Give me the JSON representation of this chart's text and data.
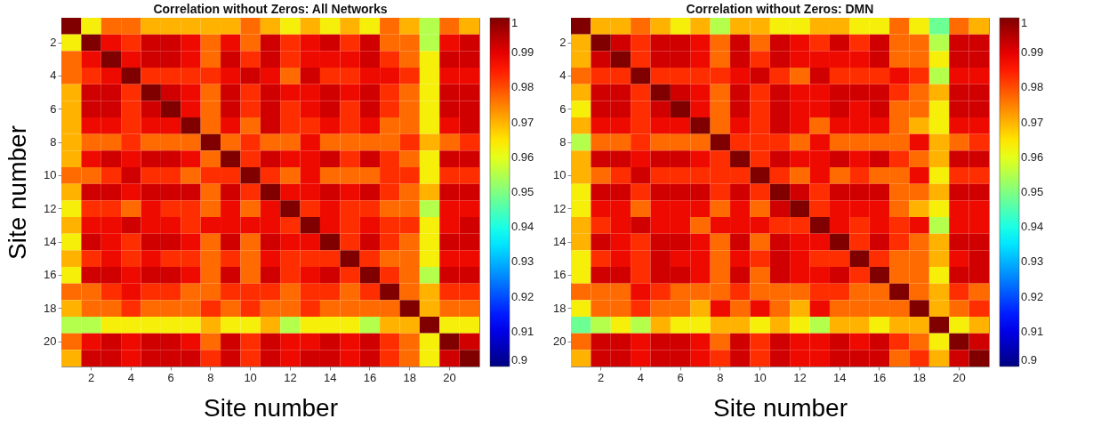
{
  "chart_data": [
    {
      "type": "heatmap",
      "title": "Correlation without Zeros: All Networks",
      "xlabel": "Site number",
      "ylabel": "Site number",
      "categories": [
        null,
        "2",
        null,
        "4",
        null,
        "6",
        null,
        "8",
        null,
        "10",
        null,
        "12",
        null,
        "14",
        null,
        "16",
        null,
        "18",
        null,
        "20",
        null
      ],
      "y_categories": [
        null,
        "2",
        null,
        "4",
        null,
        "6",
        null,
        "8",
        null,
        "10",
        null,
        "12",
        null,
        "14",
        null,
        "16",
        null,
        "18",
        null,
        "20",
        null
      ],
      "clim": [
        0.9,
        1
      ],
      "cticks": [
        0.9,
        0.91,
        0.92,
        0.93,
        0.94,
        0.95,
        0.96,
        0.97,
        0.98,
        0.99,
        1
      ],
      "cells": [
        [
          1,
          0.963,
          0.977,
          0.977,
          0.97,
          0.97,
          0.97,
          0.97,
          0.97,
          0.977,
          0.97,
          0.963,
          0.97,
          0.963,
          0.97,
          0.963,
          0.977,
          0.97,
          0.955,
          0.977,
          0.97
        ],
        [
          0.963,
          1,
          0.988,
          0.983,
          0.992,
          0.992,
          0.988,
          0.977,
          0.988,
          0.977,
          0.992,
          0.983,
          0.988,
          0.992,
          0.983,
          0.992,
          0.977,
          0.977,
          0.955,
          0.988,
          0.992
        ],
        [
          0.977,
          0.988,
          1,
          0.988,
          0.992,
          0.992,
          0.988,
          0.977,
          0.992,
          0.983,
          0.992,
          0.983,
          0.988,
          0.988,
          0.988,
          0.992,
          0.983,
          0.977,
          0.963,
          0.992,
          0.992
        ],
        [
          0.977,
          0.983,
          0.988,
          1,
          0.983,
          0.983,
          0.983,
          0.983,
          0.988,
          0.992,
          0.988,
          0.977,
          0.992,
          0.983,
          0.983,
          0.988,
          0.988,
          0.983,
          0.963,
          0.988,
          0.988
        ],
        [
          0.97,
          0.992,
          0.992,
          0.983,
          1,
          0.992,
          0.988,
          0.977,
          0.992,
          0.983,
          0.992,
          0.988,
          0.988,
          0.992,
          0.988,
          0.992,
          0.983,
          0.977,
          0.963,
          0.992,
          0.992
        ],
        [
          0.97,
          0.992,
          0.992,
          0.983,
          0.992,
          1,
          0.988,
          0.977,
          0.992,
          0.983,
          0.992,
          0.983,
          0.988,
          0.992,
          0.983,
          0.992,
          0.983,
          0.977,
          0.963,
          0.992,
          0.992
        ],
        [
          0.97,
          0.988,
          0.988,
          0.983,
          0.988,
          0.988,
          1,
          0.977,
          0.988,
          0.977,
          0.992,
          0.983,
          0.983,
          0.988,
          0.983,
          0.988,
          0.977,
          0.977,
          0.963,
          0.988,
          0.992
        ],
        [
          0.97,
          0.977,
          0.977,
          0.983,
          0.977,
          0.977,
          0.977,
          1,
          0.977,
          0.983,
          0.977,
          0.977,
          0.988,
          0.977,
          0.977,
          0.977,
          0.977,
          0.983,
          0.97,
          0.977,
          0.983
        ],
        [
          0.97,
          0.988,
          0.992,
          0.988,
          0.992,
          0.992,
          0.988,
          0.977,
          1,
          0.983,
          0.992,
          0.988,
          0.988,
          0.992,
          0.983,
          0.992,
          0.983,
          0.977,
          0.963,
          0.992,
          0.992
        ],
        [
          0.977,
          0.977,
          0.983,
          0.992,
          0.983,
          0.983,
          0.977,
          0.983,
          0.983,
          1,
          0.983,
          0.977,
          0.988,
          0.977,
          0.977,
          0.977,
          0.983,
          0.983,
          0.963,
          0.983,
          0.983
        ],
        [
          0.97,
          0.992,
          0.992,
          0.988,
          0.992,
          0.992,
          0.992,
          0.977,
          0.992,
          0.983,
          1,
          0.988,
          0.988,
          0.992,
          0.988,
          0.992,
          0.983,
          0.977,
          0.97,
          0.992,
          0.992
        ],
        [
          0.963,
          0.983,
          0.983,
          0.977,
          0.988,
          0.983,
          0.983,
          0.977,
          0.988,
          0.977,
          0.988,
          1,
          0.983,
          0.988,
          0.983,
          0.983,
          0.977,
          0.977,
          0.955,
          0.988,
          0.988
        ],
        [
          0.97,
          0.988,
          0.988,
          0.992,
          0.988,
          0.988,
          0.983,
          0.988,
          0.988,
          0.988,
          0.988,
          0.983,
          1,
          0.988,
          0.983,
          0.988,
          0.983,
          0.983,
          0.963,
          0.988,
          0.992
        ],
        [
          0.963,
          0.992,
          0.988,
          0.983,
          0.992,
          0.992,
          0.988,
          0.977,
          0.992,
          0.977,
          0.992,
          0.988,
          0.988,
          1,
          0.983,
          0.992,
          0.983,
          0.977,
          0.963,
          0.992,
          0.992
        ],
        [
          0.97,
          0.983,
          0.988,
          0.983,
          0.988,
          0.983,
          0.983,
          0.977,
          0.983,
          0.977,
          0.988,
          0.983,
          0.983,
          0.983,
          1,
          0.983,
          0.977,
          0.977,
          0.963,
          0.988,
          0.988
        ],
        [
          0.963,
          0.992,
          0.992,
          0.988,
          0.992,
          0.992,
          0.988,
          0.977,
          0.992,
          0.977,
          0.992,
          0.983,
          0.988,
          0.992,
          0.983,
          1,
          0.983,
          0.977,
          0.955,
          0.992,
          0.992
        ],
        [
          0.977,
          0.977,
          0.983,
          0.988,
          0.983,
          0.983,
          0.977,
          0.977,
          0.983,
          0.983,
          0.983,
          0.977,
          0.983,
          0.983,
          0.977,
          0.983,
          1,
          0.977,
          0.97,
          0.983,
          0.983
        ],
        [
          0.97,
          0.977,
          0.977,
          0.983,
          0.977,
          0.977,
          0.977,
          0.983,
          0.977,
          0.983,
          0.977,
          0.977,
          0.983,
          0.977,
          0.977,
          0.977,
          0.977,
          1,
          0.97,
          0.977,
          0.977
        ],
        [
          0.955,
          0.955,
          0.963,
          0.963,
          0.963,
          0.963,
          0.963,
          0.97,
          0.963,
          0.963,
          0.97,
          0.955,
          0.963,
          0.963,
          0.963,
          0.955,
          0.97,
          0.97,
          1,
          0.963,
          0.963
        ],
        [
          0.977,
          0.988,
          0.992,
          0.988,
          0.992,
          0.992,
          0.988,
          0.977,
          0.992,
          0.983,
          0.992,
          0.988,
          0.988,
          0.992,
          0.988,
          0.992,
          0.983,
          0.977,
          0.963,
          1,
          0.992
        ],
        [
          0.97,
          0.992,
          0.992,
          0.988,
          0.992,
          0.992,
          0.992,
          0.983,
          0.992,
          0.983,
          0.992,
          0.988,
          0.992,
          0.992,
          0.988,
          0.992,
          0.983,
          0.977,
          0.963,
          0.992,
          1
        ]
      ]
    },
    {
      "type": "heatmap",
      "title": "Correlation without Zeros: DMN",
      "xlabel": "Site number",
      "categories": [
        null,
        "2",
        null,
        "4",
        null,
        "6",
        null,
        "8",
        null,
        "10",
        null,
        "12",
        null,
        "14",
        null,
        "16",
        null,
        "18",
        null,
        "20",
        null
      ],
      "y_categories": [
        null,
        "2",
        null,
        "4",
        null,
        "6",
        null,
        "8",
        null,
        "10",
        null,
        "12",
        null,
        "14",
        null,
        "16",
        null,
        "18",
        null,
        "20",
        null
      ],
      "clim": [
        0.9,
        1
      ],
      "cticks": [
        0.9,
        0.91,
        0.92,
        0.93,
        0.94,
        0.95,
        0.96,
        0.97,
        0.98,
        0.99,
        1
      ],
      "cells": [
        [
          1,
          0.97,
          0.97,
          0.977,
          0.97,
          0.963,
          0.97,
          0.955,
          0.97,
          0.97,
          0.963,
          0.963,
          0.97,
          0.97,
          0.963,
          0.963,
          0.977,
          0.963,
          0.948,
          0.977,
          0.97
        ],
        [
          0.97,
          1,
          0.992,
          0.983,
          0.992,
          0.992,
          0.988,
          0.977,
          0.992,
          0.977,
          0.992,
          0.988,
          0.983,
          0.992,
          0.983,
          0.992,
          0.977,
          0.977,
          0.955,
          0.992,
          0.992
        ],
        [
          0.97,
          0.992,
          1,
          0.983,
          0.992,
          0.992,
          0.988,
          0.977,
          0.992,
          0.983,
          0.992,
          0.988,
          0.988,
          0.988,
          0.988,
          0.992,
          0.977,
          0.977,
          0.963,
          0.992,
          0.992
        ],
        [
          0.977,
          0.983,
          0.983,
          1,
          0.983,
          0.983,
          0.983,
          0.983,
          0.988,
          0.992,
          0.983,
          0.977,
          0.992,
          0.983,
          0.983,
          0.983,
          0.988,
          0.983,
          0.955,
          0.988,
          0.988
        ],
        [
          0.97,
          0.992,
          0.992,
          0.983,
          1,
          0.992,
          0.988,
          0.977,
          0.992,
          0.983,
          0.992,
          0.988,
          0.988,
          0.992,
          0.992,
          0.992,
          0.983,
          0.977,
          0.97,
          0.992,
          0.992
        ],
        [
          0.963,
          0.992,
          0.992,
          0.983,
          0.992,
          1,
          0.988,
          0.977,
          0.992,
          0.983,
          0.992,
          0.988,
          0.988,
          0.992,
          0.988,
          0.992,
          0.977,
          0.977,
          0.963,
          0.992,
          0.992
        ],
        [
          0.97,
          0.988,
          0.988,
          0.983,
          0.988,
          0.988,
          1,
          0.977,
          0.988,
          0.983,
          0.992,
          0.988,
          0.977,
          0.988,
          0.988,
          0.988,
          0.977,
          0.97,
          0.963,
          0.988,
          0.988
        ],
        [
          0.955,
          0.977,
          0.977,
          0.983,
          0.977,
          0.977,
          0.977,
          1,
          0.983,
          0.983,
          0.983,
          0.977,
          0.988,
          0.977,
          0.977,
          0.977,
          0.977,
          0.988,
          0.97,
          0.977,
          0.983
        ],
        [
          0.97,
          0.992,
          0.992,
          0.988,
          0.992,
          0.992,
          0.988,
          0.983,
          1,
          0.983,
          0.992,
          0.988,
          0.988,
          0.992,
          0.988,
          0.992,
          0.983,
          0.977,
          0.97,
          0.992,
          0.992
        ],
        [
          0.97,
          0.977,
          0.983,
          0.992,
          0.983,
          0.983,
          0.983,
          0.983,
          0.983,
          1,
          0.983,
          0.977,
          0.988,
          0.977,
          0.983,
          0.977,
          0.977,
          0.988,
          0.963,
          0.983,
          0.983
        ],
        [
          0.963,
          0.992,
          0.992,
          0.983,
          0.992,
          0.992,
          0.992,
          0.983,
          0.992,
          0.983,
          1,
          0.992,
          0.983,
          0.992,
          0.992,
          0.992,
          0.977,
          0.977,
          0.97,
          0.992,
          0.992
        ],
        [
          0.963,
          0.988,
          0.988,
          0.977,
          0.988,
          0.988,
          0.988,
          0.977,
          0.988,
          0.977,
          0.992,
          1,
          0.983,
          0.988,
          0.988,
          0.988,
          0.977,
          0.97,
          0.963,
          0.988,
          0.988
        ],
        [
          0.97,
          0.983,
          0.988,
          0.992,
          0.988,
          0.988,
          0.977,
          0.988,
          0.988,
          0.988,
          0.983,
          0.983,
          1,
          0.988,
          0.983,
          0.988,
          0.983,
          0.988,
          0.955,
          0.988,
          0.988
        ],
        [
          0.97,
          0.992,
          0.988,
          0.983,
          0.992,
          0.992,
          0.988,
          0.977,
          0.992,
          0.977,
          0.992,
          0.988,
          0.988,
          1,
          0.983,
          0.992,
          0.983,
          0.977,
          0.97,
          0.992,
          0.992
        ],
        [
          0.963,
          0.983,
          0.988,
          0.983,
          0.992,
          0.988,
          0.988,
          0.977,
          0.988,
          0.983,
          0.992,
          0.988,
          0.983,
          0.983,
          1,
          0.983,
          0.977,
          0.977,
          0.97,
          0.988,
          0.992
        ],
        [
          0.963,
          0.992,
          0.992,
          0.983,
          0.992,
          0.992,
          0.988,
          0.977,
          0.992,
          0.977,
          0.992,
          0.988,
          0.988,
          0.992,
          0.983,
          1,
          0.977,
          0.977,
          0.963,
          0.992,
          0.992
        ],
        [
          0.977,
          0.977,
          0.977,
          0.988,
          0.983,
          0.977,
          0.977,
          0.977,
          0.983,
          0.977,
          0.977,
          0.977,
          0.983,
          0.983,
          0.977,
          0.977,
          1,
          0.977,
          0.97,
          0.983,
          0.977
        ],
        [
          0.963,
          0.977,
          0.977,
          0.983,
          0.977,
          0.977,
          0.97,
          0.988,
          0.977,
          0.988,
          0.977,
          0.97,
          0.988,
          0.977,
          0.977,
          0.977,
          0.977,
          1,
          0.97,
          0.977,
          0.983
        ],
        [
          0.948,
          0.955,
          0.963,
          0.955,
          0.97,
          0.963,
          0.963,
          0.97,
          0.97,
          0.963,
          0.97,
          0.963,
          0.955,
          0.97,
          0.97,
          0.963,
          0.97,
          0.97,
          1,
          0.963,
          0.97
        ],
        [
          0.977,
          0.992,
          0.992,
          0.988,
          0.992,
          0.992,
          0.988,
          0.977,
          0.992,
          0.983,
          0.992,
          0.988,
          0.988,
          0.992,
          0.988,
          0.992,
          0.983,
          0.977,
          0.963,
          1,
          0.992
        ],
        [
          0.97,
          0.992,
          0.992,
          0.988,
          0.992,
          0.992,
          0.988,
          0.983,
          0.992,
          0.983,
          0.992,
          0.988,
          0.988,
          0.992,
          0.992,
          0.992,
          0.977,
          0.983,
          0.97,
          0.992,
          1
        ]
      ]
    }
  ]
}
